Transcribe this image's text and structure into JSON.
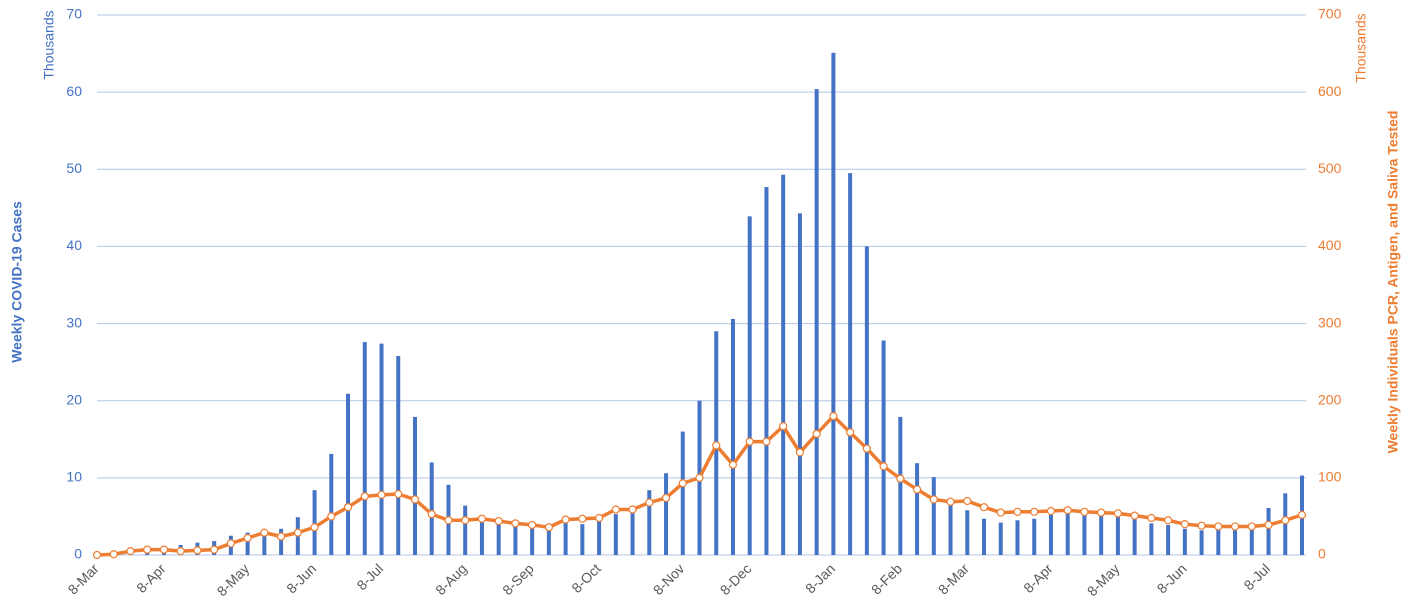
{
  "chart_data": {
    "type": "bar",
    "y_label": "Weekly COVID-19 Cases",
    "y_unit": "Thousands",
    "y2_label": "Weekly Individuals PCR, Antigen, and Saliva Tested",
    "y2_unit": "Thousands",
    "categories": [
      "8-Mar",
      null,
      null,
      null,
      "8-Apr",
      null,
      null,
      null,
      null,
      "8-May",
      null,
      null,
      null,
      "8-Jun",
      null,
      null,
      null,
      "8-Jul",
      null,
      null,
      null,
      null,
      "8-Aug",
      null,
      null,
      null,
      "8-Sep",
      null,
      null,
      null,
      "8-Oct",
      null,
      null,
      null,
      null,
      "8-Nov",
      null,
      null,
      null,
      "8-Dec",
      null,
      null,
      null,
      null,
      "8-Jan",
      null,
      null,
      null,
      "8-Feb",
      null,
      null,
      null,
      "8-Mar",
      null,
      null,
      null,
      null,
      "8-Apr",
      null,
      null,
      null,
      "8-May",
      null,
      null,
      null,
      "8-Jun",
      null,
      null,
      null,
      null,
      "8-Jul",
      null,
      null
    ],
    "series": [
      {
        "type": "bar",
        "color": "#4472c4",
        "values": [
          0,
          0.05,
          0.3,
          0.8,
          1.1,
          1.3,
          1.6,
          1.8,
          2.5,
          2.9,
          3.3,
          3.4,
          4.9,
          8.4,
          13.1,
          20.9,
          27.6,
          27.4,
          25.8,
          17.9,
          12,
          9.1,
          6.4,
          5,
          4.5,
          4,
          3.8,
          3.5,
          4.2,
          4,
          4.5,
          5.3,
          5.8,
          8.4,
          10.6,
          16,
          20,
          29,
          30.6,
          43.9,
          47.7,
          49.3,
          44.3,
          60.4,
          65.1,
          49.5,
          40,
          27.8,
          17.9,
          11.9,
          10.1,
          7,
          5.8,
          4.7,
          4.2,
          4.5,
          4.7,
          5.2,
          5.5,
          5.4,
          5.1,
          5,
          4.7,
          4.1,
          3.9,
          3.4,
          3.2,
          3.3,
          3.2,
          3.4,
          6.1,
          8,
          10.3
        ]
      },
      {
        "type": "line",
        "axis": "y2",
        "color": "#ed7d31",
        "values": [
          0,
          1,
          5,
          7,
          7,
          5,
          6,
          7,
          15,
          22,
          29,
          24,
          29,
          36,
          50,
          62,
          76,
          78,
          79,
          72,
          53,
          45,
          45,
          47,
          44,
          41,
          39,
          36,
          46,
          47,
          48,
          59,
          59,
          68,
          74,
          93,
          100,
          142,
          117,
          147,
          147,
          167,
          133,
          157,
          180,
          159,
          138,
          115,
          99,
          85,
          72,
          69,
          70,
          62,
          55,
          56,
          56,
          57,
          58,
          56,
          55,
          54,
          51,
          48,
          45,
          40,
          38,
          37,
          37,
          37,
          39,
          45,
          52
        ]
      }
    ],
    "ylim": [
      0,
      70
    ],
    "yticks": [
      0,
      10,
      20,
      30,
      40,
      50,
      60,
      70
    ],
    "y2lim": [
      0,
      700
    ],
    "y2ticks": [
      0,
      100,
      200,
      300,
      400,
      500,
      600,
      700
    ],
    "grid": true
  }
}
